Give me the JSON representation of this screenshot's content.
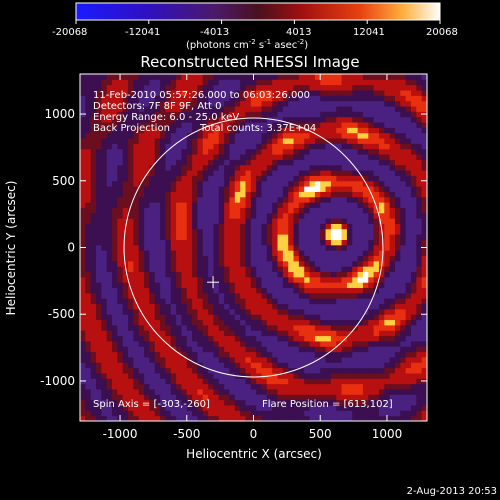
{
  "colorbar": {
    "ticks": [
      "-20068",
      "-12041",
      "-4013",
      "4013",
      "12041",
      "20068"
    ],
    "units_text": "(photons cm",
    "units_exp1": "-2",
    "units_mid": " s",
    "units_exp2": "-1",
    "units_mid2": " asec",
    "units_exp3": "-2",
    "units_end": ")",
    "range": [
      -20068,
      20068
    ]
  },
  "annotations": {
    "time_range": "11-Feb-2010 05:57:26.000 to 06:03:26.000",
    "detectors": "Detectors: 7F 8F 9F, Att 0",
    "energy": "Energy Range: 6.0 - 25.0 keV",
    "method": "Back Projection",
    "counts": "Total counts: 3.37E+04",
    "spin_axis": "Spin Axis = [-303,-260]",
    "flare_position": "Flare Position = [613,102]"
  },
  "footer": {
    "date": "2-Aug-2013 20:53"
  },
  "chart_data": {
    "type": "heatmap",
    "title": "Reconstructed RHESSI Image",
    "xlabel": "Heliocentric X (arcsec)",
    "ylabel": "Heliocentric Y (arcsec)",
    "xlim": [
      -1300,
      1300
    ],
    "ylim": [
      -1300,
      1300
    ],
    "xticks": [
      -1000,
      -500,
      0,
      500,
      1000
    ],
    "xtick_labels": [
      "-1000",
      "-500",
      "0",
      "500",
      "1000"
    ],
    "yticks": [
      -1000,
      -500,
      0,
      500,
      1000
    ],
    "ytick_labels": [
      "-1000",
      "-500",
      "0",
      "500",
      "1000"
    ],
    "solar_disk_radius": 970,
    "spin_axis": [
      -303,
      -260
    ],
    "flare_position": [
      613,
      102
    ],
    "colors": {
      "low": "#0000ff",
      "mid": "#c01010",
      "high": "#ffffff"
    }
  }
}
